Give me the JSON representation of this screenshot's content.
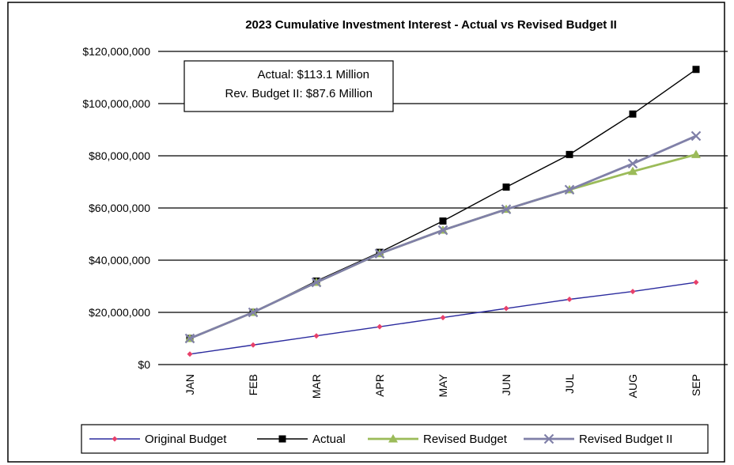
{
  "chart_data": {
    "type": "line",
    "title": "2023 Cumulative Investment Interest - Actual vs Revised Budget II",
    "xlabel": "",
    "ylabel": "",
    "categories": [
      "JAN",
      "FEB",
      "MAR",
      "APR",
      "MAY",
      "JUN",
      "JUL",
      "AUG",
      "SEP"
    ],
    "ylim": [
      0,
      120000000
    ],
    "yticks": [
      0,
      20000000,
      40000000,
      60000000,
      80000000,
      100000000,
      120000000
    ],
    "ytick_labels": [
      "$0",
      "$20,000,000",
      "$40,000,000",
      "$60,000,000",
      "$80,000,000",
      "$100,000,000",
      "$120,000,000"
    ],
    "grid": "horizontal",
    "legend_position": "bottom",
    "annotation": {
      "line1": "Actual:  $113.1 Million",
      "line2": "Rev. Budget II:  $87.6 Million"
    },
    "series": [
      {
        "name": "Original  Budget",
        "color": "#2b2b9e",
        "marker": "diamond",
        "marker_color": "#e8406a",
        "values": [
          4000000,
          7500000,
          11000000,
          14500000,
          18000000,
          21500000,
          25000000,
          28000000,
          31500000
        ]
      },
      {
        "name": "Actual",
        "color": "#000000",
        "marker": "square",
        "marker_color": "#000000",
        "values": [
          10000000,
          20000000,
          32000000,
          43000000,
          55000000,
          68000000,
          80500000,
          96000000,
          113100000
        ]
      },
      {
        "name": "Revised Budget",
        "color": "#9bbb59",
        "marker": "triangle",
        "marker_color": "#9bbb59",
        "values": [
          10000000,
          20000000,
          31500000,
          42500000,
          51500000,
          59500000,
          67000000,
          74000000,
          80500000
        ]
      },
      {
        "name": "Revised Budget II",
        "color": "#8080a8",
        "marker": "x",
        "marker_color": "#8080a8",
        "values": [
          10000000,
          20000000,
          31500000,
          42500000,
          51500000,
          59500000,
          67000000,
          77000000,
          87600000
        ]
      }
    ]
  }
}
